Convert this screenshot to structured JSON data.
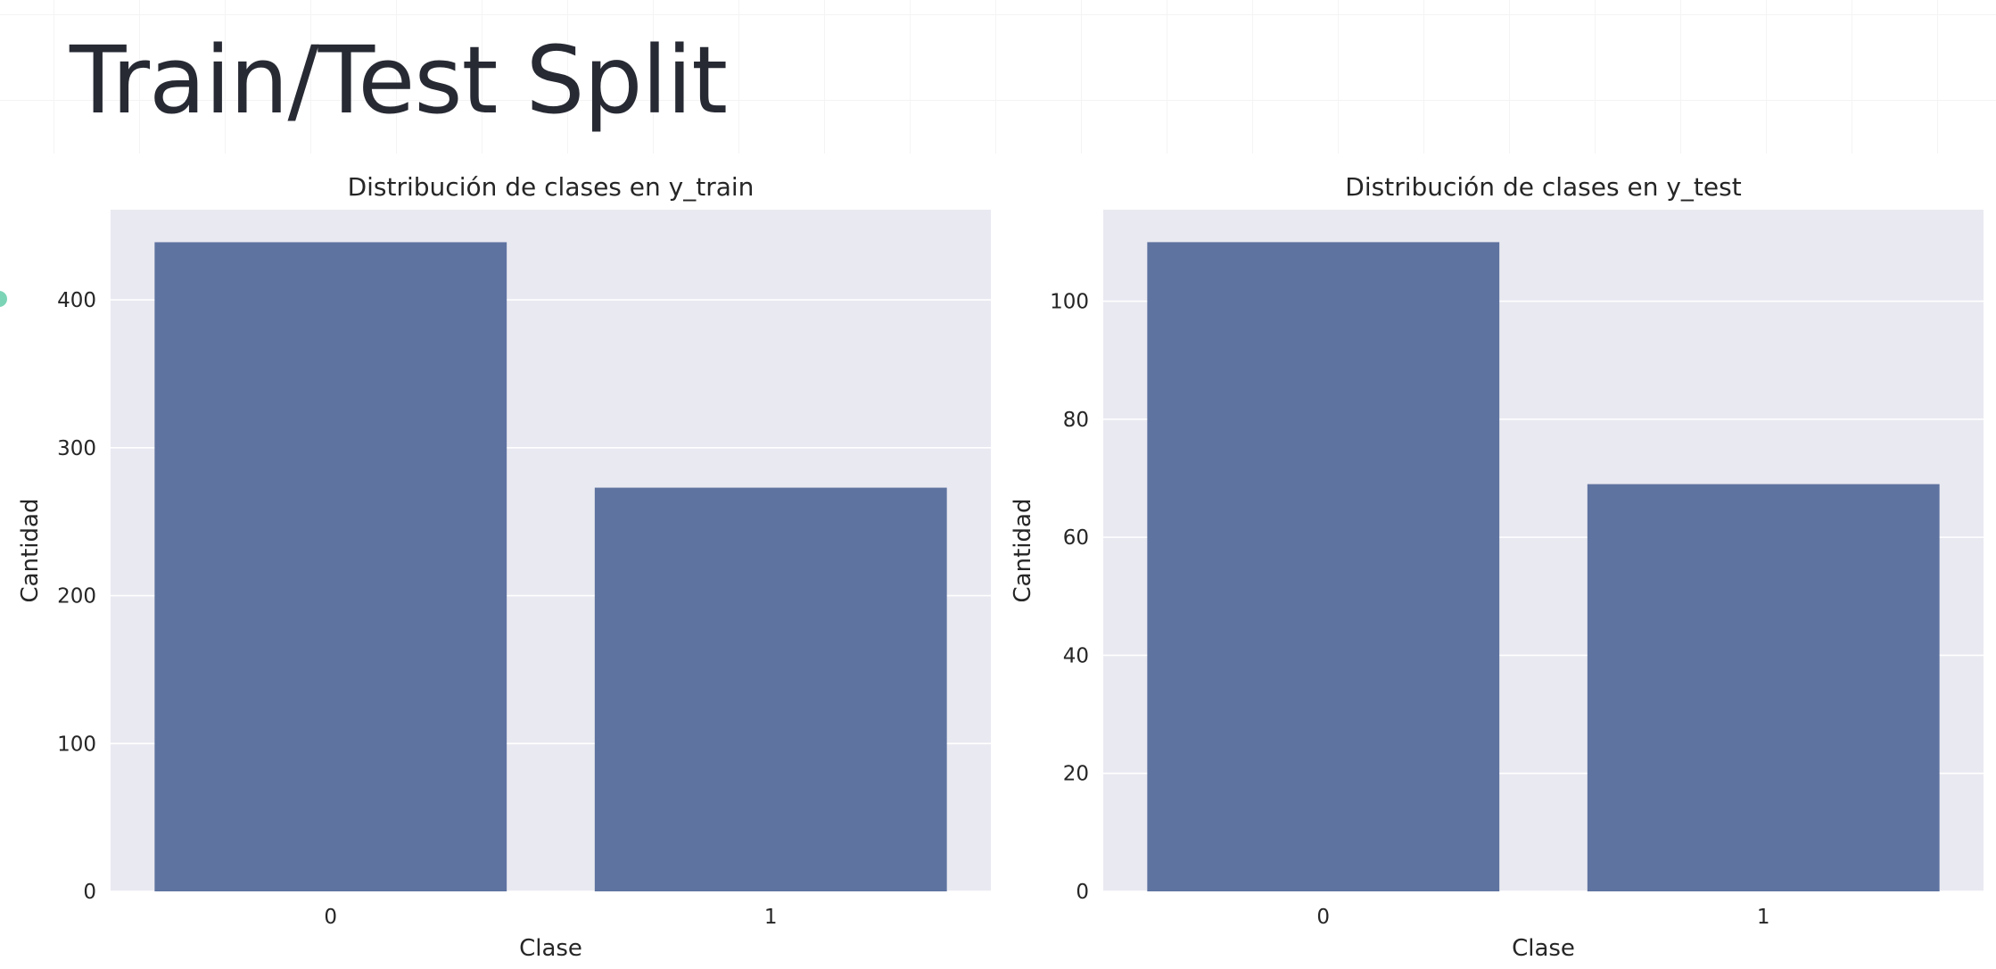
{
  "slide": {
    "title": "Train/Test Split"
  },
  "colors": {
    "bar": "#5f73a0",
    "plot_background": "#e9e9f1",
    "gridline": "#ffffff",
    "title_text": "#272a33",
    "marker": "#7cd4b6"
  },
  "chart_data": [
    {
      "type": "bar",
      "title": "Distribución de clases en y_train",
      "xlabel": "Clase",
      "ylabel": "Cantidad",
      "categories": [
        "0",
        "1"
      ],
      "values": [
        439,
        273
      ],
      "ylim": [
        0,
        461
      ],
      "yticks": [
        0,
        100,
        200,
        300,
        400
      ],
      "grid": true
    },
    {
      "type": "bar",
      "title": "Distribución de clases en y_test",
      "xlabel": "Clase",
      "ylabel": "Cantidad",
      "categories": [
        "0",
        "1"
      ],
      "values": [
        110,
        69
      ],
      "ylim": [
        0,
        115.5
      ],
      "yticks": [
        0,
        20,
        40,
        60,
        80,
        100
      ],
      "grid": true
    }
  ]
}
